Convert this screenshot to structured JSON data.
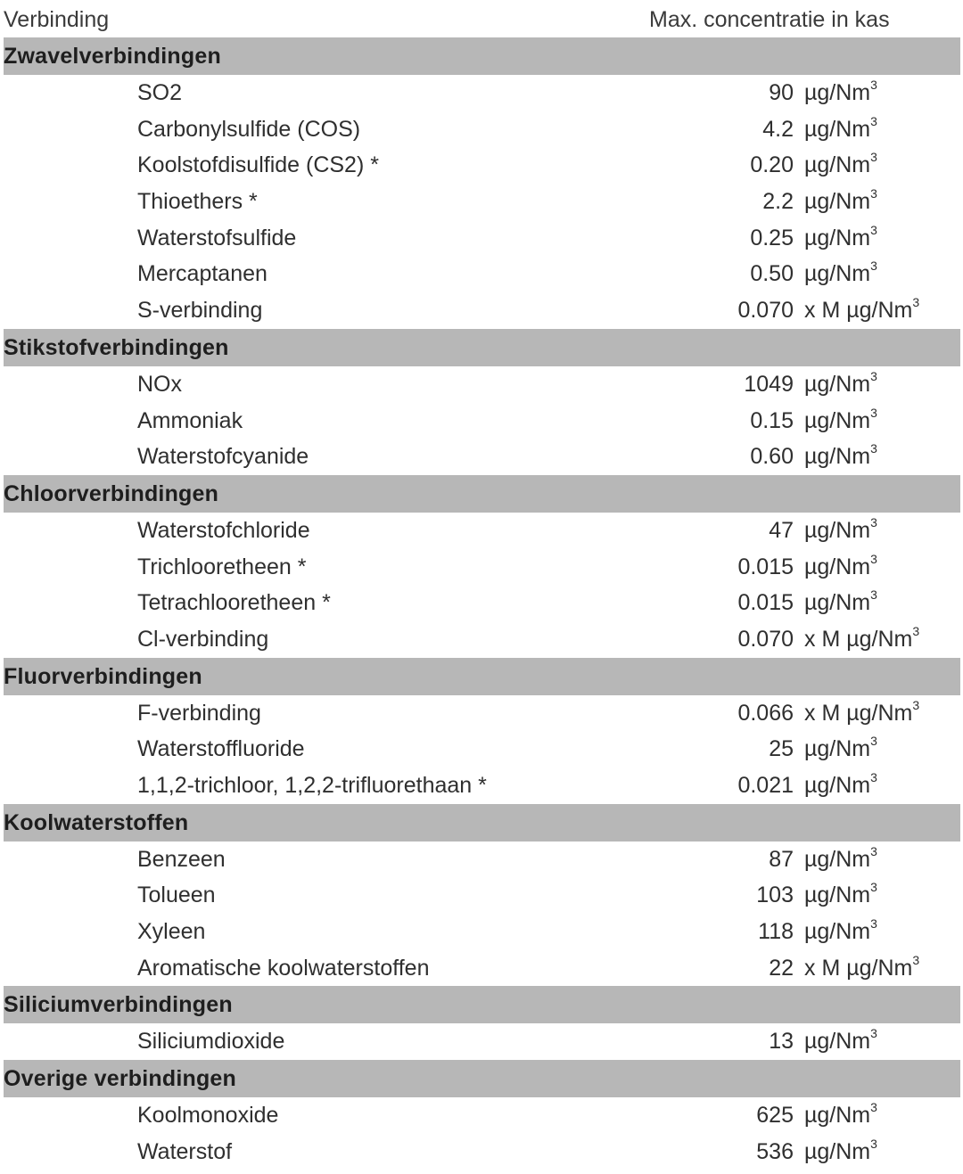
{
  "header": {
    "left": "Verbinding",
    "right": "Max. concentratie in kas"
  },
  "sections": [
    {
      "label": "Zwavelverbindingen",
      "items": [
        {
          "name": "SO2",
          "value": "90",
          "unit": "µg/Nm",
          "exp": "3"
        },
        {
          "name": "Carbonylsulfide (COS)",
          "value": "4.2",
          "unit": "µg/Nm",
          "exp": "3"
        },
        {
          "name": "Koolstofdisulfide (CS2) *",
          "value": "0.20",
          "unit": "µg/Nm",
          "exp": "3"
        },
        {
          "name": "Thioethers *",
          "value": "2.2",
          "unit": "µg/Nm",
          "exp": "3"
        },
        {
          "name": "Waterstofsulfide",
          "value": "0.25",
          "unit": "µg/Nm",
          "exp": "3"
        },
        {
          "name": "Mercaptanen",
          "value": "0.50",
          "unit": "µg/Nm",
          "exp": "3"
        },
        {
          "name": "S-verbinding",
          "value": "0.070",
          "unit": "x M µg/Nm",
          "exp": "3"
        }
      ]
    },
    {
      "label": "Stikstofverbindingen",
      "items": [
        {
          "name": "NOx",
          "value": "1049",
          "unit": "µg/Nm",
          "exp": "3"
        },
        {
          "name": "Ammoniak",
          "value": "0.15",
          "unit": "µg/Nm",
          "exp": "3"
        },
        {
          "name": "Waterstofcyanide",
          "value": "0.60",
          "unit": "µg/Nm",
          "exp": "3"
        }
      ]
    },
    {
      "label": "Chloorverbindingen",
      "items": [
        {
          "name": "Waterstofchloride",
          "value": "47",
          "unit": "µg/Nm",
          "exp": "3"
        },
        {
          "name": "Trichlooretheen *",
          "value": "0.015",
          "unit": "µg/Nm",
          "exp": "3"
        },
        {
          "name": "Tetrachlooretheen *",
          "value": "0.015",
          "unit": "µg/Nm",
          "exp": "3"
        },
        {
          "name": "Cl-verbinding",
          "value": "0.070",
          "unit": "x M µg/Nm",
          "exp": "3"
        }
      ]
    },
    {
      "label": "Fluorverbindingen",
      "items": [
        {
          "name": "F-verbinding",
          "value": "0.066",
          "unit": "x M µg/Nm",
          "exp": "3"
        },
        {
          "name": "Waterstoffluoride",
          "value": "25",
          "unit": "µg/Nm",
          "exp": "3"
        },
        {
          "name": "1,1,2-trichloor, 1,2,2-trifluorethaan *",
          "value": "0.021",
          "unit": "µg/Nm",
          "exp": "3"
        }
      ]
    },
    {
      "label": "Koolwaterstoffen",
      "items": [
        {
          "name": "Benzeen",
          "value": "87",
          "unit": "µg/Nm",
          "exp": "3"
        },
        {
          "name": "Tolueen",
          "value": "103",
          "unit": "µg/Nm",
          "exp": "3"
        },
        {
          "name": "Xyleen",
          "value": "118",
          "unit": "µg/Nm",
          "exp": "3"
        },
        {
          "name": "Aromatische koolwaterstoffen",
          "value": "22",
          "unit": "x M µg/Nm",
          "exp": "3"
        }
      ]
    },
    {
      "label": "Siliciumverbindingen",
      "items": [
        {
          "name": "Siliciumdioxide",
          "value": "13",
          "unit": "µg/Nm",
          "exp": "3"
        }
      ]
    },
    {
      "label": "Overige verbindingen",
      "items": [
        {
          "name": "Koolmonoxide",
          "value": "625",
          "unit": "µg/Nm",
          "exp": "3"
        },
        {
          "name": "Waterstof",
          "value": "536",
          "unit": "µg/Nm",
          "exp": "3"
        }
      ]
    }
  ]
}
